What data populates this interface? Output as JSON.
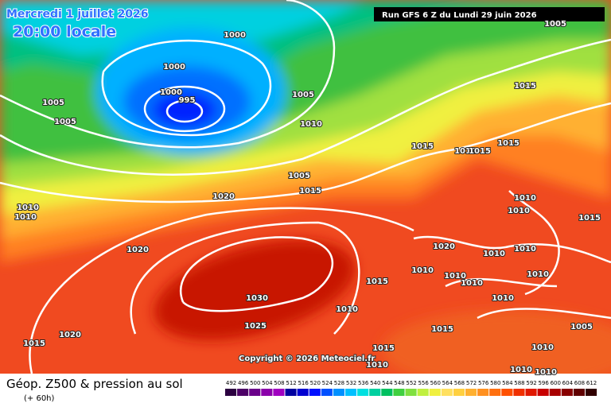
{
  "header": {
    "date": "Mercredi 1 juillet 2026",
    "time": "20:00 locale",
    "run": "Run GFS 6 Z du Lundi 29 juin 2026"
  },
  "copyright": "Copyright © 2026 Meteociel.fr",
  "footer": {
    "title": "Géop. Z500 & pression au sol",
    "subtitle": "(+ 60h)"
  },
  "isobar_labels": [
    "1005",
    "1000",
    "1000",
    "1000",
    "995",
    "1005",
    "1005",
    "1005",
    "1010",
    "1015",
    "1015",
    "1010",
    "1015",
    "1015",
    "1005",
    "1015",
    "1020",
    "1010",
    "1010",
    "1010",
    "1010",
    "1015",
    "1020",
    "1020",
    "1010",
    "1010",
    "1010",
    "1010",
    "1010",
    "1010",
    "1015",
    "1030",
    "1010",
    "1010",
    "1025",
    "1015",
    "1005",
    "1020",
    "1015",
    "1015",
    "1010",
    "1010",
    "1010",
    "1010"
  ],
  "scale": [
    {
      "value": 492,
      "color": "#2b0040"
    },
    {
      "value": 496,
      "color": "#4c0066"
    },
    {
      "value": 500,
      "color": "#6a008a"
    },
    {
      "value": 504,
      "color": "#8a00aa"
    },
    {
      "value": 508,
      "color": "#a000c0"
    },
    {
      "value": 512,
      "color": "#0000a0"
    },
    {
      "value": 516,
      "color": "#0000d0"
    },
    {
      "value": 520,
      "color": "#0010ff"
    },
    {
      "value": 524,
      "color": "#0050ff"
    },
    {
      "value": 528,
      "color": "#0090ff"
    },
    {
      "value": 532,
      "color": "#00c0ff"
    },
    {
      "value": 536,
      "color": "#00e0e0"
    },
    {
      "value": 540,
      "color": "#00d0a0"
    },
    {
      "value": 544,
      "color": "#00c060"
    },
    {
      "value": 548,
      "color": "#40d040"
    },
    {
      "value": 552,
      "color": "#80e040"
    },
    {
      "value": 556,
      "color": "#c0f040"
    },
    {
      "value": 560,
      "color": "#f0f040"
    },
    {
      "value": 564,
      "color": "#ffe060"
    },
    {
      "value": 568,
      "color": "#ffd040"
    },
    {
      "value": 572,
      "color": "#ffb030"
    },
    {
      "value": 576,
      "color": "#ff9020"
    },
    {
      "value": 580,
      "color": "#ff7010"
    },
    {
      "value": 584,
      "color": "#ff5000"
    },
    {
      "value": 588,
      "color": "#f03000"
    },
    {
      "value": 592,
      "color": "#e01800"
    },
    {
      "value": 596,
      "color": "#c80000"
    },
    {
      "value": 600,
      "color": "#a80000"
    },
    {
      "value": 604,
      "color": "#880000"
    },
    {
      "value": 608,
      "color": "#600000"
    },
    {
      "value": 612,
      "color": "#300000"
    }
  ]
}
